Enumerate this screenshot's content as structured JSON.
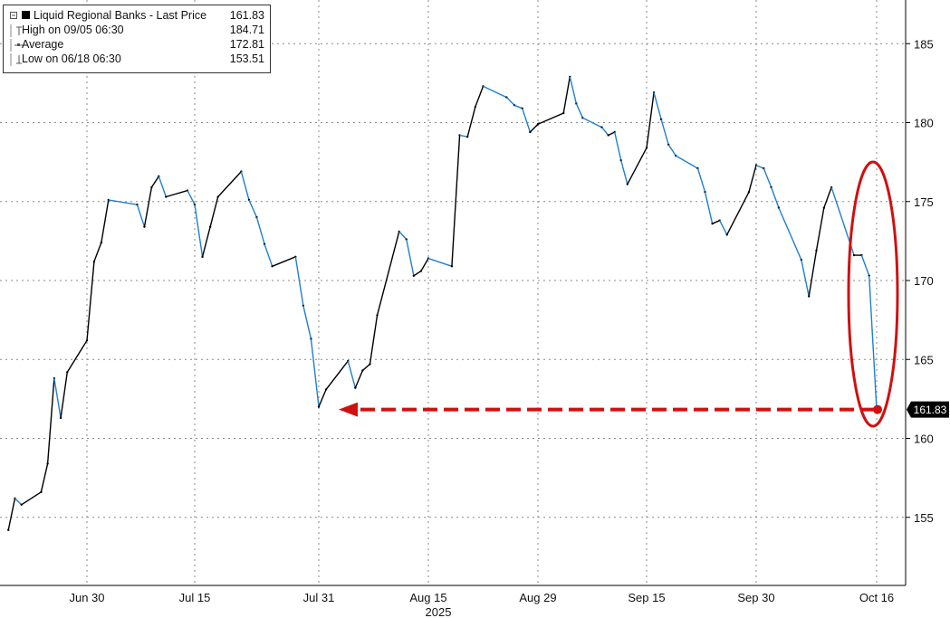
{
  "legend": {
    "series_label": "Liquid Regional Banks - Last Price",
    "last_value": "161.83",
    "high_label": "High on 09/05 06:30",
    "high_value": "184.71",
    "avg_label": "Average",
    "avg_value": "172.81",
    "low_label": "Low on 06/18 06:30",
    "low_value": "153.51"
  },
  "colors": {
    "price_line": "#000000",
    "down_segment": "#1f7fd0",
    "annotation": "#d01010",
    "grid": "#8a8a8a",
    "last_price_tag": "#000000"
  },
  "chart_data": {
    "type": "line",
    "title": "Liquid Regional Banks - Last Price",
    "xlabel": "2025",
    "ylabel": "",
    "x_tick_labels": [
      "Jun 30",
      "Jul 15",
      "Jul 31",
      "Aug 15",
      "Aug 29",
      "Sep 15",
      "Sep 30",
      "Oct 16"
    ],
    "y_tick_labels": [
      "155",
      "160",
      "165",
      "170",
      "175",
      "180",
      "185"
    ],
    "ylim": [
      151,
      188
    ],
    "last_price_tag": "161.83",
    "grid": true,
    "legend_position": "top-left",
    "annotations": [
      "red ellipse around October selloff",
      "red dashed arrow from last price back to early August level"
    ],
    "series": [
      {
        "name": "Liquid Regional Banks - Last Price",
        "points": [
          [
            "06-18",
            154.2
          ],
          [
            "06-19",
            156.2
          ],
          [
            "06-20",
            155.8
          ],
          [
            "06-23",
            156.6
          ],
          [
            "06-24",
            158.4
          ],
          [
            "06-25",
            163.8
          ],
          [
            "06-26",
            161.3
          ],
          [
            "06-27",
            164.2
          ],
          [
            "06-30",
            166.2
          ],
          [
            "07-01",
            171.2
          ],
          [
            "07-02",
            172.4
          ],
          [
            "07-03",
            175.1
          ],
          [
            "07-07",
            174.8
          ],
          [
            "07-08",
            173.4
          ],
          [
            "07-09",
            175.9
          ],
          [
            "07-10",
            176.6
          ],
          [
            "07-11",
            175.3
          ],
          [
            "07-14",
            175.7
          ],
          [
            "07-15",
            174.8
          ],
          [
            "07-16",
            171.5
          ],
          [
            "07-17",
            173.4
          ],
          [
            "07-18",
            175.3
          ],
          [
            "07-21",
            176.9
          ],
          [
            "07-22",
            175.1
          ],
          [
            "07-23",
            174.0
          ],
          [
            "07-24",
            172.3
          ],
          [
            "07-25",
            170.9
          ],
          [
            "07-28",
            171.5
          ],
          [
            "07-29",
            168.4
          ],
          [
            "07-30",
            166.3
          ],
          [
            "07-31",
            162.0
          ],
          [
            "08-01",
            163.1
          ],
          [
            "08-04",
            164.9
          ],
          [
            "08-05",
            163.2
          ],
          [
            "08-06",
            164.3
          ],
          [
            "08-07",
            164.7
          ],
          [
            "08-08",
            167.8
          ],
          [
            "08-11",
            173.1
          ],
          [
            "08-12",
            172.6
          ],
          [
            "08-13",
            170.3
          ],
          [
            "08-14",
            170.6
          ],
          [
            "08-15",
            171.4
          ],
          [
            "08-18",
            170.9
          ],
          [
            "08-19",
            179.2
          ],
          [
            "08-20",
            179.1
          ],
          [
            "08-21",
            181.0
          ],
          [
            "08-22",
            182.3
          ],
          [
            "08-25",
            181.6
          ],
          [
            "08-26",
            181.1
          ],
          [
            "08-27",
            180.9
          ],
          [
            "08-28",
            179.4
          ],
          [
            "08-29",
            179.9
          ],
          [
            "09-02",
            180.6
          ],
          [
            "09-03",
            182.9
          ],
          [
            "09-04",
            181.2
          ],
          [
            "09-05",
            180.3
          ],
          [
            "09-08",
            179.7
          ],
          [
            "09-09",
            179.2
          ],
          [
            "09-10",
            179.4
          ],
          [
            "09-11",
            177.6
          ],
          [
            "09-12",
            176.1
          ],
          [
            "09-15",
            178.4
          ],
          [
            "09-16",
            181.9
          ],
          [
            "09-17",
            180.2
          ],
          [
            "09-18",
            178.6
          ],
          [
            "09-19",
            177.9
          ],
          [
            "09-22",
            177.1
          ],
          [
            "09-23",
            175.6
          ],
          [
            "09-24",
            173.6
          ],
          [
            "09-25",
            173.8
          ],
          [
            "09-26",
            172.9
          ],
          [
            "09-29",
            175.6
          ],
          [
            "09-30",
            177.3
          ],
          [
            "10-01",
            177.1
          ],
          [
            "10-02",
            175.9
          ],
          [
            "10-03",
            174.6
          ],
          [
            "10-06",
            171.3
          ],
          [
            "10-07",
            169.0
          ],
          [
            "10-08",
            171.9
          ],
          [
            "10-09",
            174.6
          ],
          [
            "10-10",
            175.9
          ],
          [
            "10-13",
            171.6
          ],
          [
            "10-14",
            171.6
          ],
          [
            "10-15",
            170.3
          ],
          [
            "10-16",
            161.83
          ]
        ]
      }
    ]
  }
}
